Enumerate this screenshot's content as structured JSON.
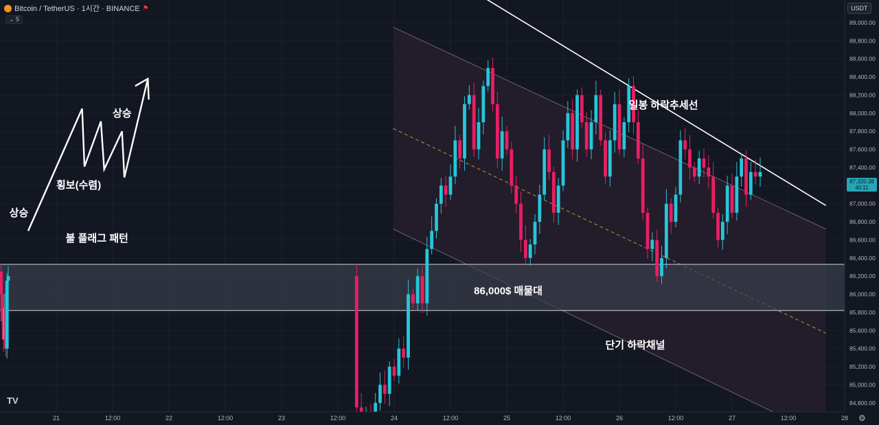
{
  "header": {
    "title": "Bitcoin / TetherUS · 1시간 · BINANCE",
    "indicator_count": "5"
  },
  "currency_button": "USDT",
  "last_price_tag": {
    "price": "87,320.38",
    "countdown": "40:11"
  },
  "logo": "TV",
  "colors": {
    "background": "#131722",
    "up_candle": "#26c6da",
    "down_candle": "#e91e63",
    "channel_fill": "#2a1f2e",
    "zone_fill": "#3b3f4c",
    "midline": "#b59a3c"
  },
  "chart_data": {
    "type": "candlestick",
    "symbol": "Bitcoin / TetherUS",
    "interval": "1시간",
    "exchange": "BINANCE",
    "y_axis": {
      "ticks": [
        84800,
        85000,
        85200,
        85400,
        85600,
        85800,
        86000,
        86200,
        86400,
        86600,
        86800,
        87000,
        87200,
        87400,
        87600,
        87800,
        88000,
        88200,
        88400,
        88600,
        88800,
        89000
      ],
      "tick_labels": [
        "84,800.00",
        "85,000.00",
        "85,200.00",
        "85,400.00",
        "85,600.00",
        "85,800.00",
        "86,000.00",
        "86,200.00",
        "86,400.00",
        "86,600.00",
        "86,800.00",
        "87,000.00",
        "87,200.00",
        "87,400.00",
        "87,600.00",
        "87,800.00",
        "88,000.00",
        "88,200.00",
        "88,400.00",
        "88,600.00",
        "88,800.00",
        "89,000.00"
      ],
      "range": [
        84700,
        89250
      ]
    },
    "x_axis": {
      "range": [
        -12,
        168
      ],
      "ticks": [
        {
          "t": 0,
          "label": "21"
        },
        {
          "t": 12,
          "label": "12:00"
        },
        {
          "t": 24,
          "label": "22"
        },
        {
          "t": 36,
          "label": "12:00"
        },
        {
          "t": 48,
          "label": "23"
        },
        {
          "t": 60,
          "label": "12:00"
        },
        {
          "t": 72,
          "label": "24"
        },
        {
          "t": 84,
          "label": "12:00"
        },
        {
          "t": 96,
          "label": "25"
        },
        {
          "t": 108,
          "label": "12:00"
        },
        {
          "t": 120,
          "label": "26"
        },
        {
          "t": 132,
          "label": "12:00"
        },
        {
          "t": 144,
          "label": "27"
        },
        {
          "t": 156,
          "label": "12:00"
        },
        {
          "t": 168,
          "label": "28"
        }
      ]
    },
    "candles_close": [
      86250,
      86000,
      85700,
      85500,
      85850,
      85400,
      86150,
      86200,
      84750,
      84600,
      84700,
      84600,
      84800,
      85000,
      84900,
      85200,
      85100,
      85400,
      85300,
      86000,
      85900,
      86200,
      85900,
      86500,
      86700,
      87000,
      87200,
      87100,
      87300,
      87700,
      87500,
      88100,
      88200,
      87600,
      87900,
      88300,
      88500,
      88100,
      87500,
      87800,
      87600,
      87200,
      87000,
      86600,
      86400,
      86550,
      86800,
      87100,
      87600,
      87350,
      86900,
      87200,
      87700,
      88000,
      87600,
      88200,
      87900,
      87600,
      87900,
      88200,
      87700,
      87300,
      87700,
      88100,
      87600,
      87900,
      88300,
      87900,
      87500,
      86900,
      86500,
      86600,
      86200,
      86400,
      87000,
      86800,
      87100,
      87700,
      87600,
      87400,
      87300,
      87500,
      87400,
      87300,
      86900,
      86600,
      86800,
      87200,
      86900,
      87300,
      87500,
      87100,
      87350,
      87300,
      87350
    ],
    "annotations": [
      {
        "text": "상승",
        "t": -10,
        "price": 86860
      },
      {
        "text": "횡보(수렴)",
        "t": 0,
        "price": 87170
      },
      {
        "text": "상승",
        "t": 12,
        "price": 87960
      },
      {
        "text": "불 플래그 패턴",
        "t": 2,
        "price": 86580
      },
      {
        "text": "86,000$ 매물대",
        "t": 89,
        "price": 86000
      },
      {
        "text": "일봉 하락추세선",
        "t": 122,
        "price": 88050
      },
      {
        "text": "단기 하락채널",
        "t": 117,
        "price": 85400
      }
    ],
    "supply_zone": {
      "low": 85820,
      "high": 86330
    },
    "channel": {
      "upper": [
        [
          71.8,
          88950
        ],
        [
          164,
          86720
        ]
      ],
      "lower": [
        [
          71.8,
          86720
        ],
        [
          164,
          84420
        ]
      ],
      "midline": [
        [
          71.8,
          87830
        ],
        [
          164,
          85570
        ]
      ]
    },
    "daily_trendline": [
      [
        84,
        89500
      ],
      [
        164,
        86980
      ]
    ]
  }
}
